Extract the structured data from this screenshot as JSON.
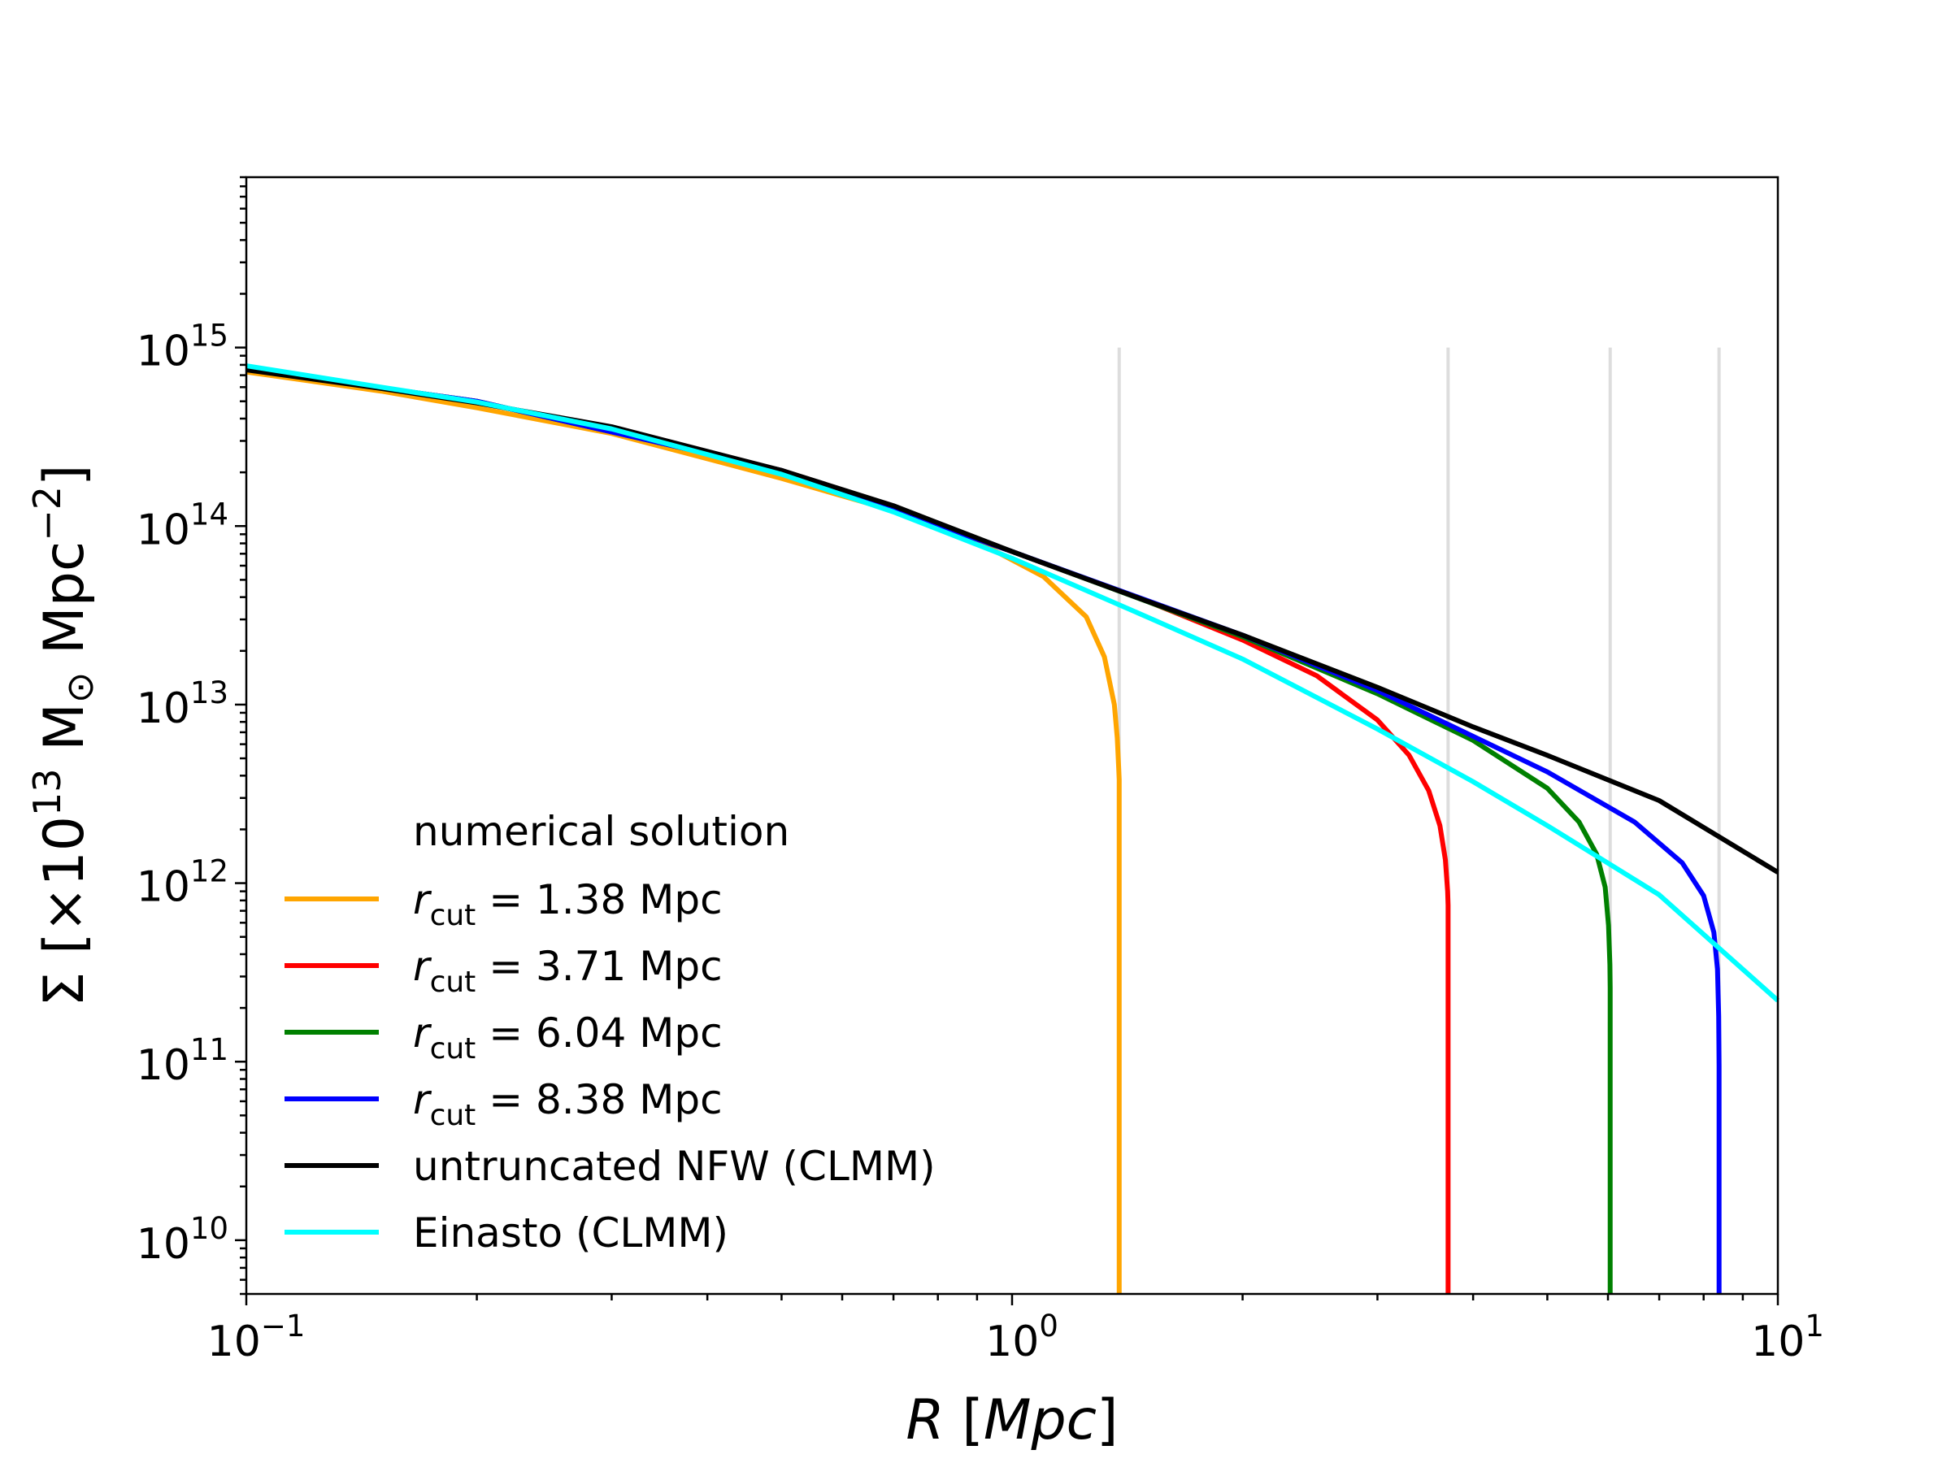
{
  "chart_data": {
    "type": "line",
    "xlabel": "R [Mpc]",
    "ylabel": "Σ [×10^13 M⊙ Mpc^−2]",
    "xscale": "log",
    "yscale": "log",
    "xlim": [
      0.1,
      10
    ],
    "ylim": [
      5000000000.0,
      9000000000000000.0
    ],
    "grid": false,
    "legend": {
      "placement": "lower-left",
      "title": "numerical solution"
    },
    "x_ticks": [
      {
        "base": "10",
        "exp": "−1",
        "value": 0.1
      },
      {
        "base": "10",
        "exp": "0",
        "value": 1
      },
      {
        "base": "10",
        "exp": "1",
        "value": 10
      }
    ],
    "y_ticks": [
      {
        "base": "10",
        "exp": "10",
        "value": 10000000000.0
      },
      {
        "base": "10",
        "exp": "11",
        "value": 100000000000.0
      },
      {
        "base": "10",
        "exp": "12",
        "value": 1000000000000.0
      },
      {
        "base": "10",
        "exp": "13",
        "value": 10000000000000.0
      },
      {
        "base": "10",
        "exp": "14",
        "value": 100000000000000.0
      },
      {
        "base": "10",
        "exp": "15",
        "value": 1000000000000000.0
      }
    ],
    "cutoff_lines": [
      1.38,
      3.71,
      6.04,
      8.38
    ],
    "series": [
      {
        "name": "r_cut = 1.38 Mpc",
        "color": "#ffa500",
        "x": [
          0.1,
          0.15,
          0.2,
          0.3,
          0.5,
          0.7,
          0.9,
          1.1,
          1.25,
          1.32,
          1.36,
          1.372,
          1.378,
          1.38,
          1.38
        ],
        "y": [
          730000000000000.0,
          570000000000000.0,
          460000000000000.0,
          330000000000000.0,
          185000000000000.0,
          122000000000000.0,
          82000000000000.0,
          52000000000000.0,
          31000000000000.0,
          18500000000000.0,
          10000000000000.0,
          6500000000000.0,
          4400000000000.0,
          3800000000000.0,
          5000000000.0
        ]
      },
      {
        "name": "r_cut = 3.71 Mpc",
        "color": "#ff0000",
        "x": [
          0.1,
          0.2,
          0.5,
          1.0,
          1.5,
          2.0,
          2.5,
          3.0,
          3.3,
          3.5,
          3.62,
          3.68,
          3.705,
          3.71,
          3.71
        ],
        "y": [
          760000000000000.0,
          500000000000000.0,
          205000000000000.0,
          72000000000000.0,
          38000000000000.0,
          23000000000000.0,
          14500000000000.0,
          8200000000000.0,
          5200000000000.0,
          3300000000000.0,
          2100000000000.0,
          1350000000000.0,
          900000000000.0,
          750000000000.0,
          5000000000.0
        ]
      },
      {
        "name": "r_cut = 6.04 Mpc",
        "color": "#008000",
        "x": [
          0.1,
          0.2,
          0.5,
          1.0,
          2.0,
          3.0,
          4.0,
          5.0,
          5.5,
          5.8,
          5.95,
          6.01,
          6.035,
          6.04,
          6.04
        ],
        "y": [
          760000000000000.0,
          500000000000000.0,
          205000000000000.0,
          72000000000000.0,
          24000000000000.0,
          11500000000000.0,
          6300000000000.0,
          3400000000000.0,
          2200000000000.0,
          1450000000000.0,
          950000000000.0,
          580000000000.0,
          350000000000.0,
          260000000000.0,
          5000000000.0
        ]
      },
      {
        "name": "r_cut = 8.38 Mpc",
        "color": "#0000ff",
        "x": [
          0.1,
          0.2,
          0.5,
          1.0,
          2.0,
          3.0,
          5.0,
          6.5,
          7.5,
          8.0,
          8.25,
          8.34,
          8.37,
          8.38,
          8.38
        ],
        "y": [
          760000000000000.0,
          500000000000000.0,
          205000000000000.0,
          72000000000000.0,
          24500000000000.0,
          12000000000000.0,
          4200000000000.0,
          2200000000000.0,
          1300000000000.0,
          850000000000.0,
          530000000000.0,
          330000000000.0,
          180000000000.0,
          95000000000.0,
          5000000000.0
        ]
      },
      {
        "name": "untruncated NFW (CLMM)",
        "color": "#000000",
        "x": [
          0.1,
          0.15,
          0.2,
          0.3,
          0.5,
          0.7,
          1.0,
          1.5,
          2.0,
          3.0,
          4.0,
          5.0,
          7.0,
          10.0
        ],
        "y": [
          750000000000000.0,
          590000000000000.0,
          490000000000000.0,
          360000000000000.0,
          205000000000000.0,
          130000000000000.0,
          72000000000000.0,
          38000000000000.0,
          24500000000000.0,
          12500000000000.0,
          7500000000000.0,
          5200000000000.0,
          2900000000000.0,
          1150000000000.0
        ]
      },
      {
        "name": "Einasto (CLMM)",
        "color": "#00ffff",
        "x": [
          0.1,
          0.15,
          0.2,
          0.3,
          0.5,
          0.7,
          1.0,
          1.5,
          2.0,
          3.0,
          4.0,
          5.0,
          7.0,
          10.0
        ],
        "y": [
          790000000000000.0,
          600000000000000.0,
          495000000000000.0,
          350000000000000.0,
          195000000000000.0,
          120000000000000.0,
          66000000000000.0,
          31000000000000.0,
          18000000000000.0,
          7300000000000.0,
          3700000000000.0,
          2100000000000.0,
          860000000000.0,
          220000000000.0
        ]
      }
    ]
  }
}
